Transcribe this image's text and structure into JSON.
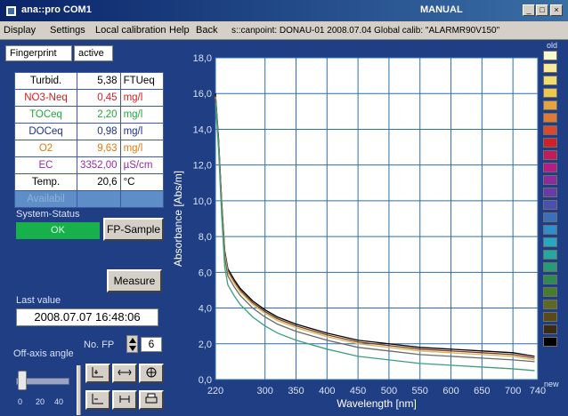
{
  "window": {
    "title": "ana::pro  COM1",
    "mode": "MANUAL",
    "buttons": [
      "_",
      "□",
      "×"
    ]
  },
  "menu": {
    "items": [
      "Display",
      "Settings",
      "Local calibration",
      "Help",
      "Back"
    ],
    "info": "s::canpoint: DONAU-01  2008.07.04 Global calib: \"ALARMR90V150\""
  },
  "fingerprint": {
    "label": "Fingerprint",
    "state": "active"
  },
  "measurements": [
    {
      "name": "Turbid.",
      "value": "5,38",
      "unit": "FTUeq",
      "color": "#000000"
    },
    {
      "name": "NO3-Neq",
      "value": "0,45",
      "unit": "mg/l",
      "color": "#d42020"
    },
    {
      "name": "TOCeq",
      "value": "2,20",
      "unit": "mg/l",
      "color": "#1faa3a"
    },
    {
      "name": "DOCeq",
      "value": "0,98",
      "unit": "mg/l",
      "color": "#1c2f8a"
    },
    {
      "name": "O2",
      "value": "9,63",
      "unit": "mg/l",
      "color": "#e07a10"
    },
    {
      "name": "EC",
      "value": "3352,00",
      "unit": "µS/cm",
      "color": "#9a2aa8"
    },
    {
      "name": "Temp.",
      "value": "20,6",
      "unit": "°C",
      "color": "#000000"
    },
    {
      "name": "Availabil",
      "value": "",
      "unit": "",
      "color": "#8fb2d8"
    }
  ],
  "system_status": {
    "label": "System-Status",
    "value": "OK"
  },
  "buttons": {
    "fp_sample": "FP-Sample",
    "measure": "Measure"
  },
  "last_value": {
    "label": "Last value",
    "value": "2008.07.07  16:48:06"
  },
  "no_fp": {
    "label": "No. FP",
    "value": "6"
  },
  "off_axis": {
    "label": "Off-axis angle",
    "ticks": [
      "0",
      "20",
      "40"
    ]
  },
  "tool_icons": [
    "zoom-in-icon",
    "fit-icon",
    "pan-icon",
    "zoom-out-icon",
    "reset-icon",
    "print-icon"
  ],
  "colorbar": {
    "top_label": "old",
    "bottom_label": "new",
    "colors": [
      "#fbf8cf",
      "#f7eb9a",
      "#f2dd6a",
      "#ecc84d",
      "#e8a341",
      "#e07a32",
      "#d84a2a",
      "#d2202a",
      "#c51a5a",
      "#b51d84",
      "#8e2a9b",
      "#6a3aa6",
      "#4c4fb0",
      "#3a6fbd",
      "#2c8ecb",
      "#24a9c4",
      "#23a9a0",
      "#279a76",
      "#2f8a4f",
      "#4a7c2e",
      "#5e6a1f",
      "#5a4a1a",
      "#3a2a18",
      "#000000"
    ]
  },
  "chart_data": {
    "type": "line",
    "xlabel": "Wavelength [nm]",
    "ylabel": "Absorbance [Abs/m]",
    "xlim": [
      220,
      740
    ],
    "ylim": [
      0,
      18
    ],
    "xticks": [
      "220",
      "300",
      "350",
      "400",
      "450",
      "500",
      "550",
      "600",
      "650",
      "700",
      "740"
    ],
    "yticks": [
      "0,0",
      "2,0",
      "4,0",
      "6,0",
      "8,0",
      "10,0",
      "12,0",
      "14,0",
      "16,0",
      "18,0"
    ],
    "grid": true,
    "x": [
      220,
      225,
      230,
      235,
      240,
      250,
      260,
      280,
      300,
      320,
      350,
      400,
      450,
      500,
      550,
      600,
      650,
      700,
      735
    ],
    "series": [
      {
        "color": "#000000",
        "values": [
          16.0,
          13.5,
          10.0,
          7.2,
          6.2,
          5.6,
          5.1,
          4.4,
          3.9,
          3.5,
          3.1,
          2.6,
          2.2,
          2.0,
          1.8,
          1.7,
          1.6,
          1.5,
          1.3
        ]
      },
      {
        "color": "#7a3a1a",
        "values": [
          15.9,
          13.4,
          9.9,
          7.1,
          6.1,
          5.5,
          5.0,
          4.3,
          3.8,
          3.4,
          3.0,
          2.5,
          2.1,
          1.9,
          1.7,
          1.6,
          1.5,
          1.4,
          1.2
        ]
      },
      {
        "color": "#d6b35a",
        "values": [
          15.8,
          13.3,
          9.8,
          7.0,
          6.0,
          5.4,
          4.9,
          4.2,
          3.7,
          3.3,
          2.9,
          2.4,
          2.0,
          1.8,
          1.6,
          1.5,
          1.4,
          1.3,
          1.1
        ]
      },
      {
        "color": "#6a6a6a",
        "values": [
          15.7,
          13.2,
          9.6,
          6.8,
          5.8,
          5.2,
          4.7,
          4.0,
          3.5,
          3.1,
          2.7,
          2.2,
          1.8,
          1.6,
          1.4,
          1.3,
          1.2,
          1.1,
          1.0
        ]
      },
      {
        "color": "#3aa07a",
        "values": [
          15.5,
          12.9,
          9.2,
          6.3,
          5.3,
          4.7,
          4.2,
          3.5,
          3.0,
          2.6,
          2.2,
          1.7,
          1.3,
          1.1,
          0.9,
          0.8,
          0.7,
          0.6,
          0.5
        ]
      }
    ]
  }
}
